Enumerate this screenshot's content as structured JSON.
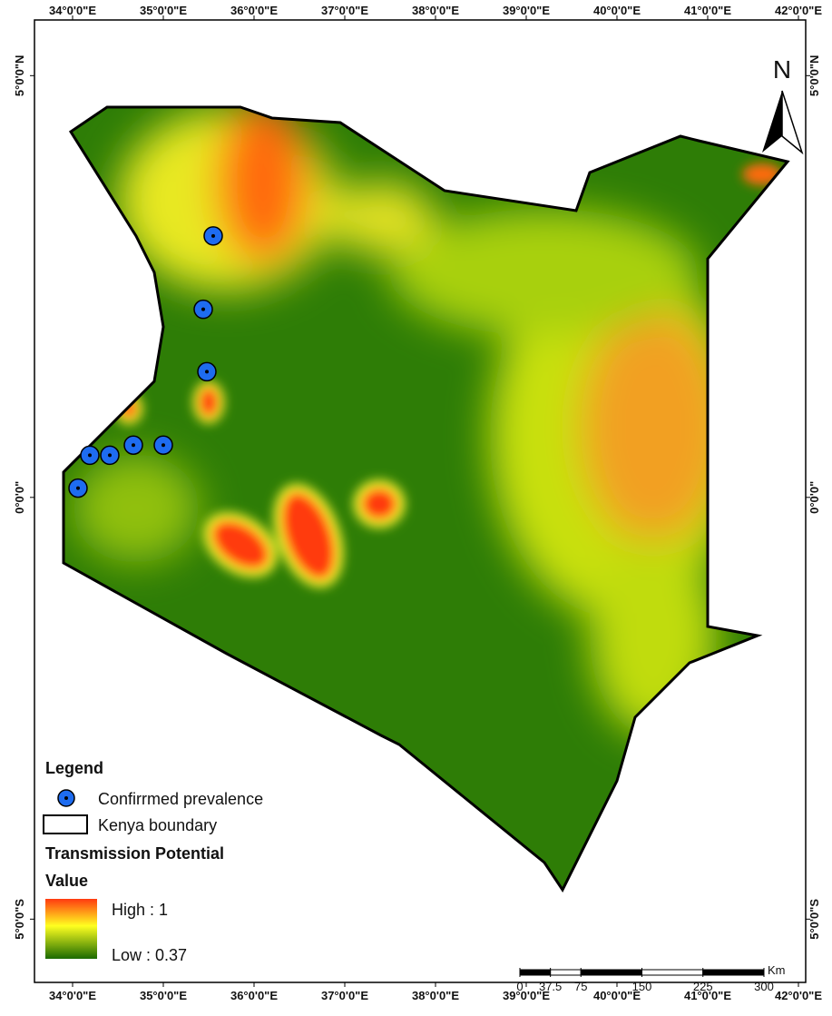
{
  "map": {
    "x_ticks": [
      {
        "value": 34,
        "label": "34°0'0\"E"
      },
      {
        "value": 35,
        "label": "35°0'0\"E"
      },
      {
        "value": 36,
        "label": "36°0'0\"E"
      },
      {
        "value": 37,
        "label": "37°0'0\"E"
      },
      {
        "value": 38,
        "label": "38°0'0\"E"
      },
      {
        "value": 39,
        "label": "39°0'0\"E"
      },
      {
        "value": 40,
        "label": "40°0'0\"E"
      },
      {
        "value": 41,
        "label": "41°0'0\"E"
      },
      {
        "value": 42,
        "label": "42°0'0\"E"
      }
    ],
    "y_ticks": [
      {
        "value": 5,
        "label": "5°0'0\"N"
      },
      {
        "value": 0,
        "label": "0°0'0\""
      },
      {
        "value": -5,
        "label": "5°0'0\"S"
      }
    ],
    "xlim": [
      33.58,
      42.08
    ],
    "ylim": [
      -5.75,
      5.66
    ],
    "north": "N",
    "legend": {
      "title": "Legend",
      "point": "Confirrmed prevalence",
      "boundary": "Kenya boundary",
      "raster_title": "Transmission Potential",
      "raster_subtitle": "Value",
      "high": "High : 1",
      "low": "Low : 0.37"
    },
    "scale": {
      "ticks": [
        0,
        37.5,
        75,
        150,
        225,
        300
      ],
      "unit": "Km"
    },
    "points": [
      {
        "lon": 35.55,
        "lat": 3.1
      },
      {
        "lon": 35.44,
        "lat": 2.23
      },
      {
        "lon": 35.48,
        "lat": 1.49
      },
      {
        "lon": 34.67,
        "lat": 0.62
      },
      {
        "lon": 35.0,
        "lat": 0.62
      },
      {
        "lon": 34.19,
        "lat": 0.5
      },
      {
        "lon": 34.41,
        "lat": 0.5
      },
      {
        "lon": 34.06,
        "lat": 0.11
      }
    ]
  }
}
